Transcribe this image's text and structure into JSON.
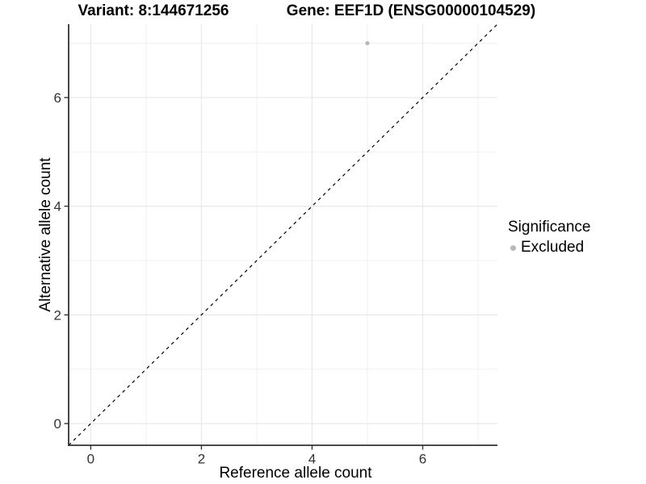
{
  "header": {
    "variant_title": "Variant: 8:144671256",
    "gene_title": "Gene: EEF1D (ENSG00000104529)"
  },
  "chart_data": {
    "type": "scatter",
    "xlabel": "Reference allele count",
    "ylabel": "Alternative allele count",
    "xlim": [
      -0.4,
      7.35
    ],
    "ylim": [
      -0.4,
      7.35
    ],
    "x_ticks": [
      0,
      2,
      4,
      6
    ],
    "y_ticks": [
      0,
      2,
      4,
      6
    ],
    "x_minor": [
      1,
      3,
      5,
      7
    ],
    "y_minor": [
      1,
      3,
      5,
      7
    ],
    "grid": true,
    "points": [
      {
        "x": 5,
        "y": 7,
        "significance": "Excluded"
      }
    ],
    "reference_line": {
      "slope": 1,
      "intercept": 0,
      "style": "dashed",
      "color": "#000000"
    },
    "legend": {
      "title": "Significance",
      "position": "right",
      "items": [
        {
          "label": "Excluded",
          "color": "#b8b8b8"
        }
      ]
    },
    "colors": {
      "point": "#b8b8b8",
      "grid_major": "#e8e8e8",
      "grid_minor": "#efefef",
      "axis_line": "#333333",
      "tick_mark": "#333333"
    }
  }
}
